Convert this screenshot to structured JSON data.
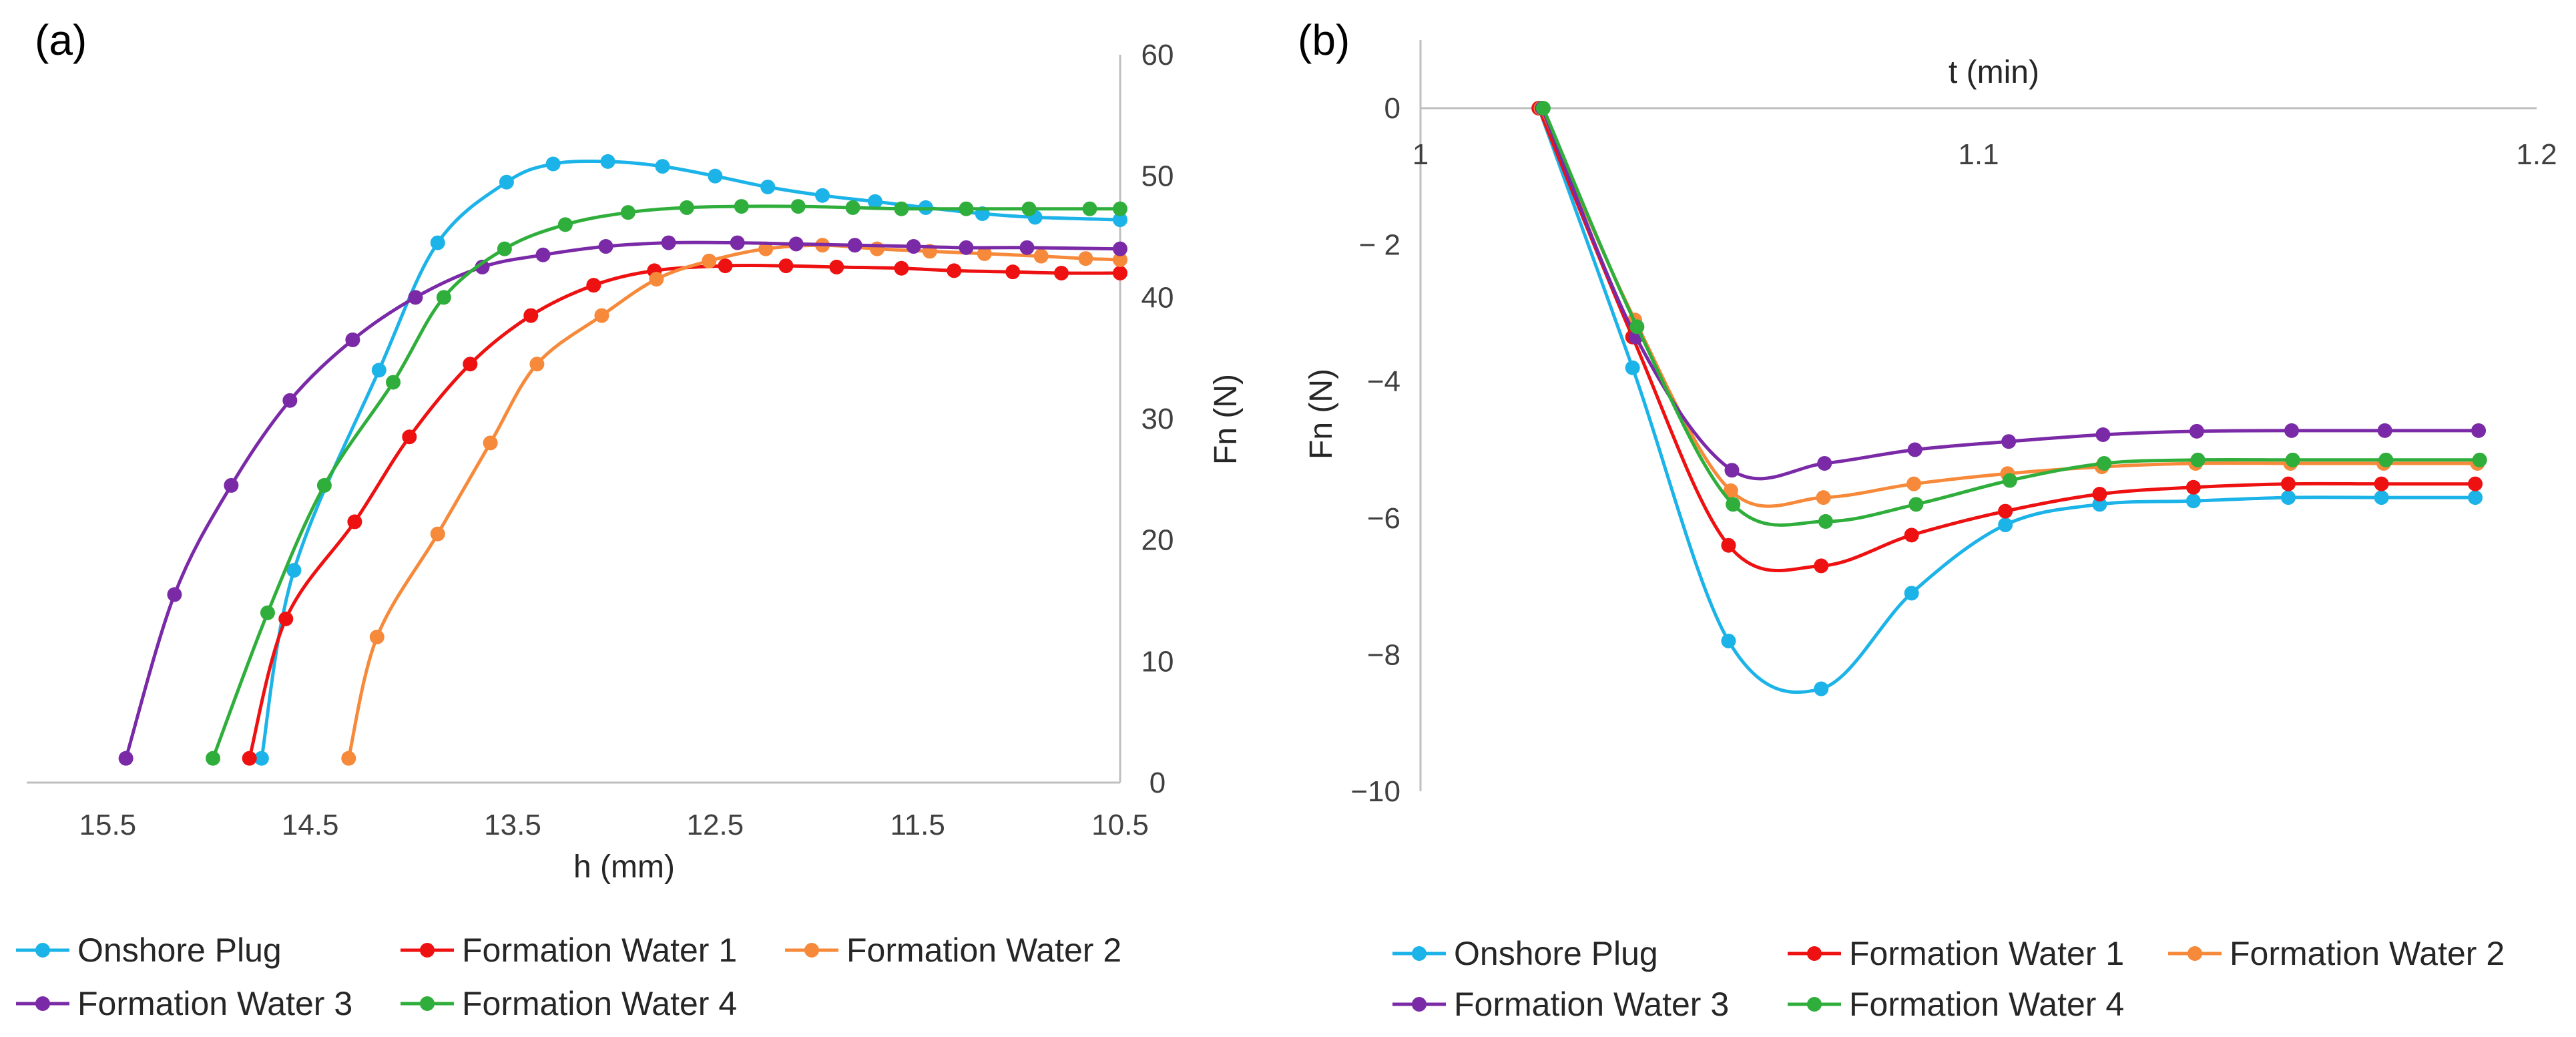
{
  "series_colors": {
    "Onshore Plug": "#1bb3e8",
    "Formation Water 1": "#ee1111",
    "Formation Water 2": "#f6893a",
    "Formation Water 3": "#7a2aa6",
    "Formation Water 4": "#2fae3b"
  },
  "chart_data": [
    {
      "type": "line",
      "panel_label": "(a)",
      "xlabel": "h (mm)",
      "ylabel": "Fn (N)",
      "xlim": [
        15.9,
        10.5
      ],
      "ylim": [
        0,
        60
      ],
      "x_reversed": true,
      "y_axis_side": "right",
      "xticks": [
        15.5,
        14.5,
        13.5,
        12.5,
        11.5,
        10.5
      ],
      "xtick_labels": [
        "15.5",
        "14.5",
        "13.5",
        "12.5",
        "11.5",
        "10.5"
      ],
      "yticks": [
        0,
        10,
        20,
        30,
        40,
        50,
        60
      ],
      "ytick_labels": [
        "0",
        "10",
        "20",
        "30",
        "40",
        "50",
        "60"
      ],
      "legend": [
        "Onshore Plug",
        "Formation Water 1",
        "Formation Water 2",
        "Formation Water 3",
        "Formation Water 4"
      ],
      "legend_position": "bottom",
      "series": [
        {
          "name": "Onshore Plug",
          "x": [
            14.74,
            14.58,
            14.16,
            13.87,
            13.53,
            13.3,
            13.03,
            12.76,
            12.5,
            12.24,
            11.97,
            11.71,
            11.46,
            11.18,
            10.92,
            10.5
          ],
          "y": [
            2.0,
            17.5,
            34.0,
            44.5,
            49.5,
            51.0,
            51.2,
            50.8,
            50.0,
            49.1,
            48.4,
            47.9,
            47.4,
            46.9,
            46.6,
            46.4
          ]
        },
        {
          "name": "Formation Water 1",
          "x": [
            14.8,
            14.62,
            14.28,
            14.01,
            13.71,
            13.41,
            13.1,
            12.8,
            12.45,
            12.15,
            11.9,
            11.58,
            11.32,
            11.03,
            10.79,
            10.5
          ],
          "y": [
            2.0,
            13.5,
            21.5,
            28.5,
            34.5,
            38.5,
            41.0,
            42.2,
            42.6,
            42.6,
            42.5,
            42.4,
            42.2,
            42.1,
            42.0,
            42.0
          ],
          "show_first_only_leftmost_marker": true
        },
        {
          "name": "Formation Water 2",
          "x": [
            14.31,
            14.17,
            13.87,
            13.61,
            13.38,
            13.06,
            12.79,
            12.53,
            12.25,
            11.97,
            11.7,
            11.44,
            11.17,
            10.89,
            10.67,
            10.5
          ],
          "y": [
            2.0,
            12.0,
            20.5,
            28.0,
            34.5,
            38.5,
            41.5,
            43.0,
            44.0,
            44.3,
            44.0,
            43.8,
            43.6,
            43.4,
            43.2,
            43.1
          ]
        },
        {
          "name": "Formation Water 3",
          "x": [
            15.41,
            15.17,
            14.89,
            14.6,
            14.29,
            13.98,
            13.65,
            13.35,
            13.04,
            12.73,
            12.39,
            12.1,
            11.81,
            11.52,
            11.26,
            10.96,
            10.5
          ],
          "y": [
            2.0,
            15.5,
            24.5,
            31.5,
            36.5,
            40.0,
            42.5,
            43.5,
            44.2,
            44.5,
            44.5,
            44.4,
            44.3,
            44.2,
            44.1,
            44.1,
            44.0
          ]
        },
        {
          "name": "Formation Water 4",
          "x": [
            14.98,
            14.71,
            14.43,
            14.09,
            13.84,
            13.54,
            13.24,
            12.93,
            12.64,
            12.37,
            12.09,
            11.82,
            11.58,
            11.26,
            10.95,
            10.65,
            10.5
          ],
          "y": [
            2.0,
            14.0,
            24.5,
            33.0,
            40.0,
            44.0,
            46.0,
            47.0,
            47.4,
            47.5,
            47.5,
            47.4,
            47.3,
            47.3,
            47.3,
            47.3,
            47.3
          ]
        }
      ]
    },
    {
      "type": "line",
      "panel_label": "(b)",
      "xlabel": "t (min)",
      "ylabel": "Fn (N)",
      "xlim": [
        1.0,
        1.2
      ],
      "ylim": [
        -10,
        1
      ],
      "x_axis_position": "top",
      "xticks": [
        1.0,
        1.1,
        1.2
      ],
      "xtick_labels": [
        "1",
        "1.1",
        "1.2"
      ],
      "yticks": [
        0,
        -2,
        -4,
        -6,
        -8,
        -10
      ],
      "ytick_labels": [
        "0",
        "− 2",
        "−4",
        "−6",
        "−8",
        "−10"
      ],
      "legend": [
        "Onshore Plug",
        "Formation Water 1",
        "Formation Water 2",
        "Formation Water 3",
        "Formation Water 4"
      ],
      "legend_position": "bottom",
      "series": [
        {
          "name": "Onshore Plug",
          "x": [
            1.0212,
            1.038,
            1.0552,
            1.0718,
            1.088,
            1.1048,
            1.1217,
            1.1385,
            1.1555,
            1.1722,
            1.189
          ],
          "y": [
            0.0,
            -3.8,
            -7.8,
            -8.5,
            -7.1,
            -6.1,
            -5.8,
            -5.75,
            -5.7,
            -5.7,
            -5.7
          ]
        },
        {
          "name": "Formation Water 1",
          "x": [
            1.0212,
            1.038,
            1.0552,
            1.0718,
            1.088,
            1.1048,
            1.1217,
            1.1385,
            1.1555,
            1.1722,
            1.189
          ],
          "y": [
            0.0,
            -3.35,
            -6.4,
            -6.7,
            -6.25,
            -5.9,
            -5.65,
            -5.55,
            -5.5,
            -5.5,
            -5.5
          ]
        },
        {
          "name": "Formation Water 2",
          "x": [
            1.0216,
            1.0384,
            1.0556,
            1.0722,
            1.0884,
            1.1052,
            1.1221,
            1.1389,
            1.1559,
            1.1726,
            1.1894
          ],
          "y": [
            0.0,
            -3.1,
            -5.6,
            -5.7,
            -5.5,
            -5.35,
            -5.25,
            -5.2,
            -5.2,
            -5.2,
            -5.2
          ]
        },
        {
          "name": "Formation Water 3",
          "x": [
            1.0218,
            1.0386,
            1.0558,
            1.0724,
            1.0886,
            1.1054,
            1.1223,
            1.1391,
            1.1561,
            1.1728,
            1.1896
          ],
          "y": [
            0.0,
            -3.35,
            -5.3,
            -5.2,
            -5.0,
            -4.88,
            -4.78,
            -4.73,
            -4.72,
            -4.72,
            -4.72
          ]
        },
        {
          "name": "Formation Water 4",
          "x": [
            1.022,
            1.0388,
            1.056,
            1.0726,
            1.0888,
            1.1056,
            1.1225,
            1.1393,
            1.1563,
            1.173,
            1.1898
          ],
          "y": [
            0.0,
            -3.2,
            -5.8,
            -6.05,
            -5.8,
            -5.45,
            -5.2,
            -5.15,
            -5.15,
            -5.15,
            -5.15
          ]
        }
      ]
    }
  ]
}
